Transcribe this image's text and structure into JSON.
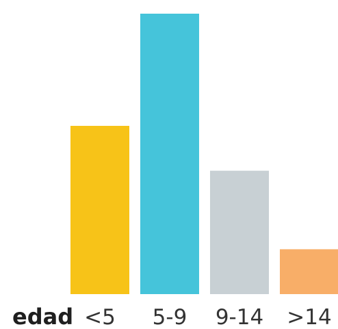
{
  "chart_data": {
    "type": "bar",
    "title": "",
    "xlabel": "edad",
    "ylabel": "",
    "categories": [
      "<5",
      "5-9",
      "9-14",
      ">14"
    ],
    "values": [
      60,
      100,
      44,
      16
    ],
    "ylim": [
      0,
      100
    ],
    "colors": [
      "#F7C318",
      "#45C4DA",
      "#C8D0D4",
      "#F8AE68"
    ],
    "grid": false,
    "legend": "none"
  }
}
